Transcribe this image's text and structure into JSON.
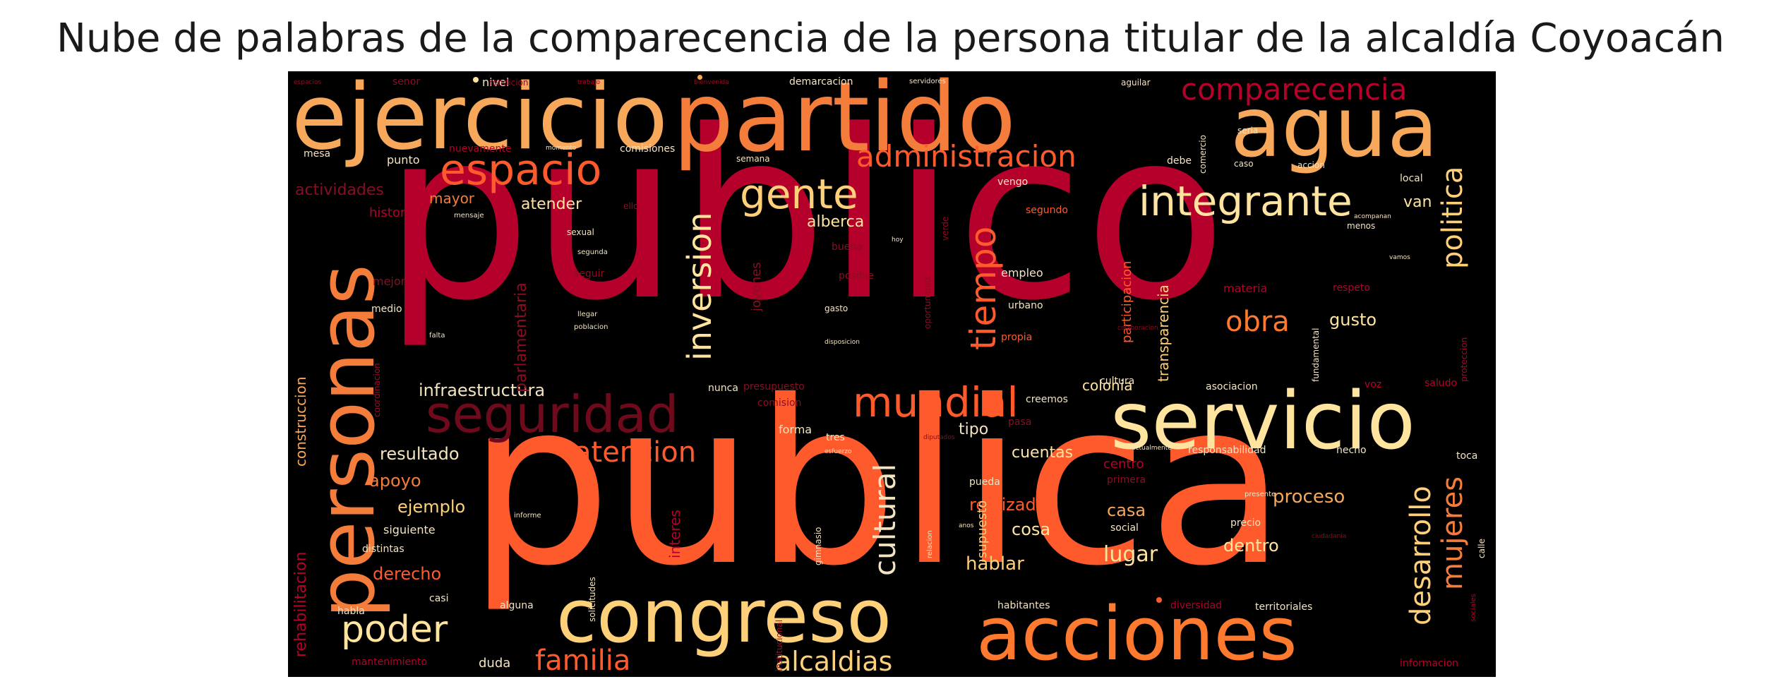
{
  "title": "Nube de palabras de la comparecencia de la persona titular de la alcaldía Coyoacán",
  "palette": {
    "crimson": "#b5002b",
    "dark_red": "#8b0d22",
    "orange_red": "#ff5a2c",
    "orange": "#f47d3c",
    "light_orange": "#f7a85a",
    "cream": "#ffe4a0",
    "pale": "#f3e3c0",
    "background": "#000000"
  },
  "words": {
    "publico": "publico",
    "publica": "publica",
    "ejercicio": "ejercicio",
    "partido": "partido",
    "agua": "agua",
    "personas": "personas",
    "servicio": "servicio",
    "congreso": "congreso",
    "acciones": "acciones",
    "seguridad": "seguridad",
    "espacio": "espacio",
    "mundial": "mundial",
    "integrante": "integrante",
    "gente": "gente",
    "comparecencia": "comparecencia",
    "administracion": "administracion",
    "tiempo": "tiempo",
    "inversion": "inversion",
    "politica": "politica",
    "poder": "poder",
    "familia": "familia",
    "alcaldias": "alcaldias",
    "cultural": "cultural",
    "desarrollo": "desarrollo",
    "mujeres": "mujeres",
    "atencion": "atencion",
    "obra": "obra",
    "infraestructura": "infraestructura",
    "parlamentaria": "parlamentaria",
    "colonia": "colonia",
    "cuentas": "cuentas",
    "proceso": "proceso",
    "realizado": "realizado",
    "resultado": "resultado",
    "ejemplo": "ejemplo",
    "apoyo": "apoyo",
    "derecho": "derecho",
    "rehabilitacion": "rehabilitacion",
    "construccion": "construccion",
    "actividades": "actividades",
    "historia": "historia",
    "mayor": "mayor",
    "atender": "atender",
    "alberca": "alberca",
    "hablar": "hablar",
    "lugar": "lugar",
    "dentro": "dentro",
    "casa": "casa",
    "cosa": "cosa",
    "transparencia": "transparencia",
    "participacion": "participacion",
    "gusto": "gusto",
    "van": "van",
    "supuesto": "supuesto",
    "interes": "interes",
    "jovenes": "jovenes",
    "mantenimiento": "mantenimiento",
    "duda": "duda",
    "nivel": "nivel",
    "senor": "senor",
    "rendicion": "rendicion",
    "demarcacion": "demarcacion",
    "servidores": "servidores",
    "aguilar": "aguilar",
    "mesa": "mesa",
    "punto": "punto",
    "nuevamente": "nuevamente",
    "comisiones": "comisiones",
    "semana": "semana",
    "seria": "seria",
    "debe": "debe",
    "comercio": "comercio",
    "caso": "caso",
    "accion": "accion",
    "local": "local",
    "vengo": "vengo",
    "segundo": "segundo",
    "menos": "menos",
    "empleo": "empleo",
    "urbano": "urbano",
    "propia": "propia",
    "materia": "materia",
    "respeto": "respeto",
    "posible": "posible",
    "buena": "buena",
    "gasto": "gasto",
    "mejor": "mejor",
    "medio": "medio",
    "seguir": "seguir",
    "sexual": "sexual",
    "segunda": "segunda",
    "coordinacion": "coordinacion",
    "falta": "falta",
    "llegar": "llegar",
    "poblacion": "poblacion",
    "fundamental": "fundamental",
    "proteccion": "proteccion",
    "nunca": "nunca",
    "presupuesto": "presupuesto",
    "comision": "comision",
    "forma": "forma",
    "tres": "tres",
    "tipo": "tipo",
    "pasa": "pasa",
    "creemos": "creemos",
    "cultura": "cultura",
    "asociacion": "asociacion",
    "voz": "voz",
    "saludo": "saludo",
    "responsabilidad": "responsabilidad",
    "hecho": "hecho",
    "toca": "toca",
    "centro": "centro",
    "primera": "primera",
    "pueda": "pueda",
    "social": "social",
    "precio": "precio",
    "siguiente": "siguiente",
    "distintas": "distintas",
    "solicitudes": "solicitudes",
    "institucional": "institucional",
    "gimnasio": "gimnasio",
    "relacion": "relacion",
    "casi": "casi",
    "habla": "habla",
    "alguna": "alguna",
    "habitantes": "habitantes",
    "diversidad": "diversidad",
    "territoriales": "territoriales",
    "informacion": "informacion",
    "sociales": "sociales",
    "calle": "calle",
    "oportunidad": "oportunidad",
    "verde": "verde",
    "mensaje": "mensaje",
    "ello": "ello",
    "presente": "presente",
    "informe": "informe",
    "espacios": "espacios",
    "actualmente": "actualmente",
    "acompanan": "acompanan",
    "vamos": "vamos",
    "colaboracion": "colaboracion",
    "esfuerzo": "esfuerzo",
    "disposicion": "disposicion",
    "trabajo": "trabajo",
    "momento": "momento",
    "anos": "anos",
    "bienvenida": "bienvenida",
    "diputados": "diputados",
    "ciudadania": "ciudadania",
    "hoy": "hoy"
  }
}
